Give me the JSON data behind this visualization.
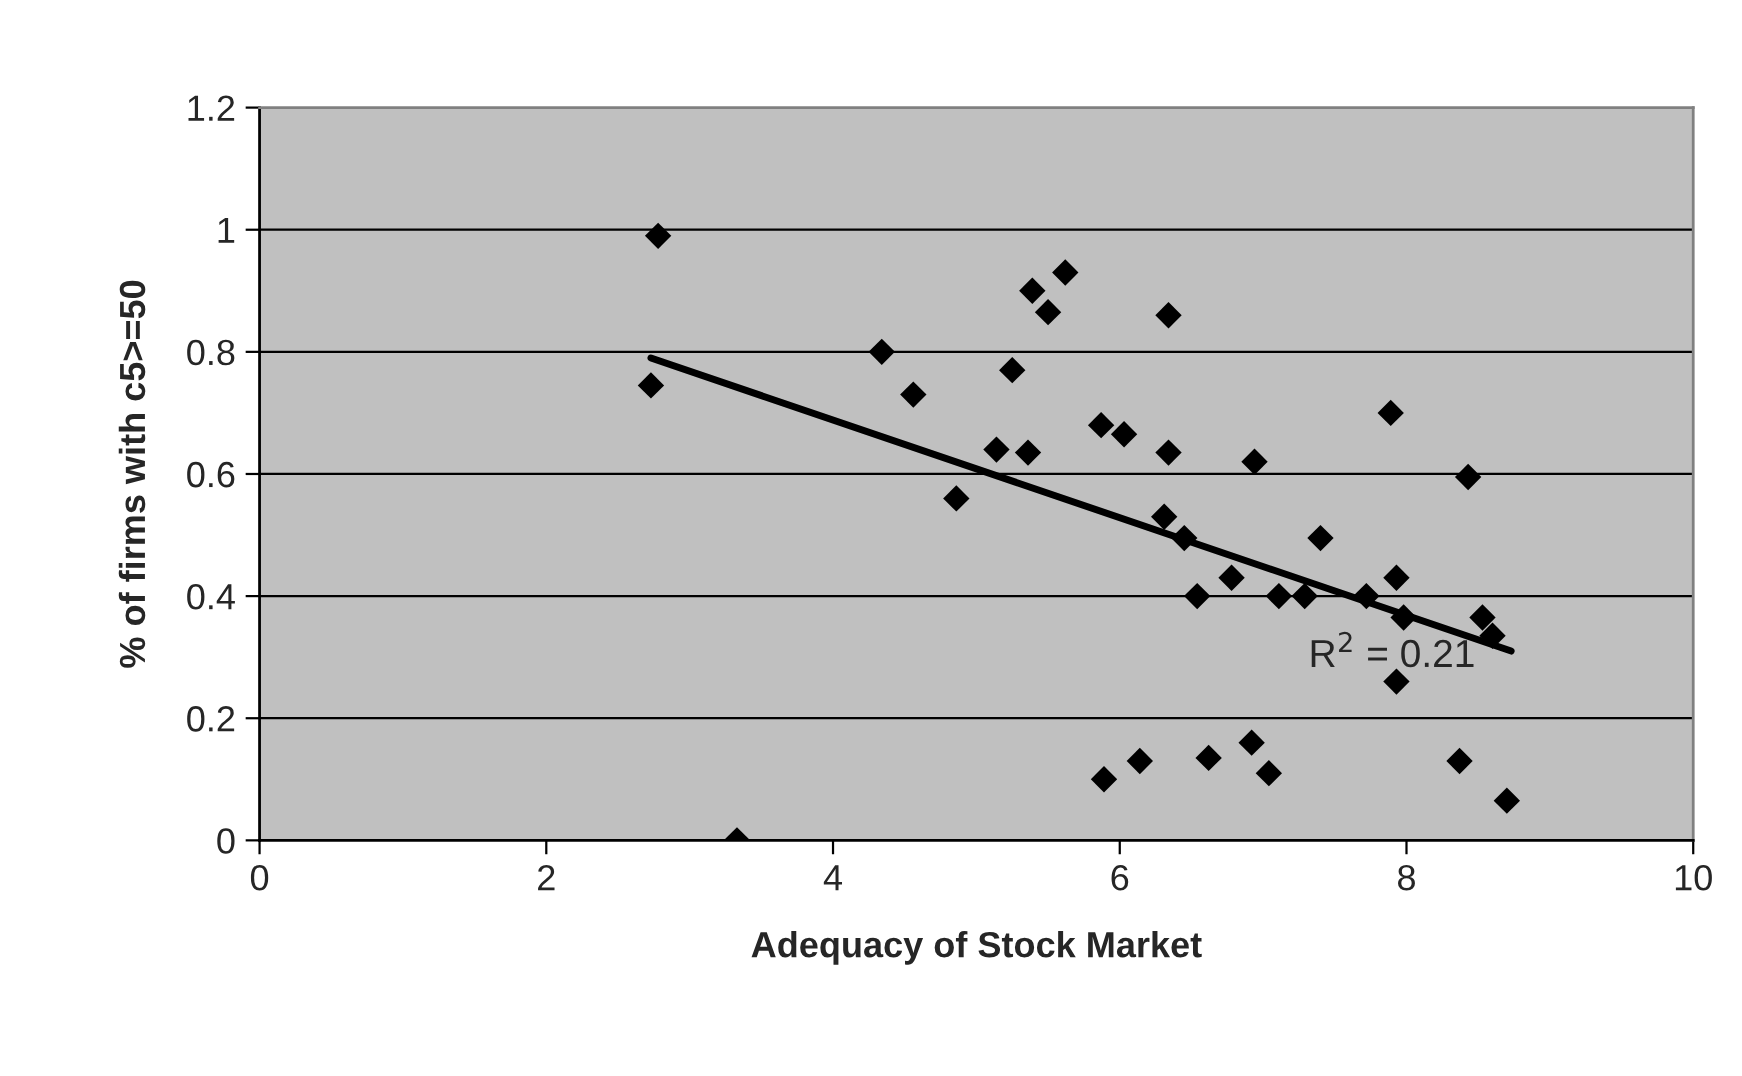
{
  "chart_data": {
    "type": "scatter",
    "xlabel": "Adequacy of Stock Market",
    "ylabel": "% of firms with c5>=50",
    "series": [
      {
        "color": "#000000",
        "marker": "diamond",
        "x": [
          2.78,
          2.73,
          4.34,
          4.56,
          4.86,
          5.14,
          5.25,
          5.36,
          5.39,
          5.5,
          5.62,
          5.87,
          6.03,
          5.89,
          3.33,
          6.34,
          6.34,
          6.94,
          7.89,
          8.43,
          6.31,
          6.45,
          6.54,
          6.78,
          7.11,
          7.29,
          7.4,
          7.72,
          7.93,
          7.98,
          8.53,
          8.6,
          7.93,
          6.14,
          6.62,
          6.92,
          7.04,
          8.37,
          8.7
        ],
        "values": [
          0.99,
          0.745,
          0.8,
          0.73,
          0.56,
          0.64,
          0.77,
          0.635,
          0.9,
          0.865,
          0.93,
          0.68,
          0.665,
          0.1,
          0,
          0.86,
          0.635,
          0.62,
          0.7,
          0.595,
          0.53,
          0.495,
          0.4,
          0.43,
          0.4,
          0.4,
          0.495,
          0.4,
          0.43,
          0.365,
          0.365,
          0.335,
          0.26,
          0.13,
          0.135,
          0.16,
          0.11,
          0.13,
          0.065
        ]
      },
      {
        "type": "line",
        "color": "#000000",
        "marker": "none",
        "line_style": "solid",
        "x": [
          2.73,
          8.73
        ],
        "values": [
          0.79,
          0.31
        ]
      }
    ],
    "annotations": [
      "R$^{2}$ = 0.21"
    ],
    "xlim": [
      0,
      10
    ],
    "xticks": [
      0,
      2,
      4,
      6,
      8,
      10
    ],
    "ylim": [
      0,
      1.2
    ],
    "yticks": [
      0,
      0.2,
      0.4,
      0.6,
      0.8,
      1,
      1.2
    ],
    "grid": "y",
    "legend": false
  }
}
